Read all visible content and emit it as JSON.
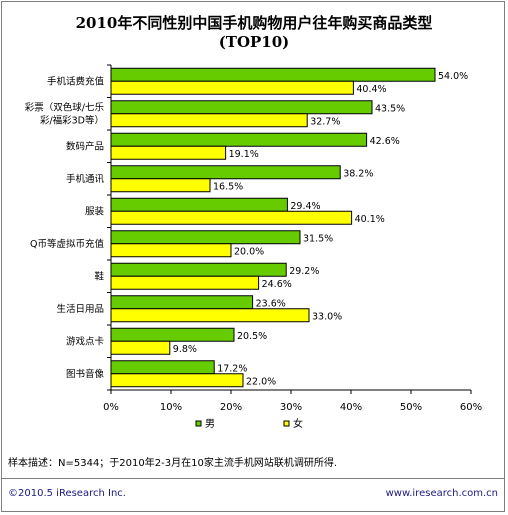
{
  "chart_data": {
    "type": "bar",
    "orientation": "horizontal",
    "title": "2010年不同性别中国手机购物用户往年购买商品类型",
    "subtitle": "(TOP10)",
    "categories": [
      [
        "手机话费充值"
      ],
      [
        "彩票（双色球/七乐",
        "彩/福彩3D等）"
      ],
      [
        "数码产品"
      ],
      [
        "手机通讯"
      ],
      [
        "服装"
      ],
      [
        "Q币等虚拟币充值"
      ],
      [
        "鞋"
      ],
      [
        "生活日用品"
      ],
      [
        "游戏点卡"
      ],
      [
        "图书音像"
      ]
    ],
    "series": [
      {
        "name": "男",
        "color": "#66cc00",
        "values": [
          54.0,
          43.5,
          42.6,
          38.2,
          29.4,
          31.5,
          29.2,
          23.6,
          20.5,
          17.2
        ]
      },
      {
        "name": "女",
        "color": "#ffff00",
        "values": [
          40.4,
          32.7,
          19.1,
          16.5,
          40.1,
          20.0,
          24.6,
          33.0,
          9.8,
          22.0
        ]
      }
    ],
    "xlim": [
      0,
      60
    ],
    "xticks": [
      "0%",
      "10%",
      "20%",
      "30%",
      "40%",
      "50%",
      "60%"
    ],
    "value_suffix": "%",
    "legend_position": "bottom"
  },
  "note": "样本描述：N=5344；于2010年2-3月在10家主流手机网站联机调研所得.",
  "footer": {
    "copyright": "©2010.5 iResearch Inc.",
    "website": "www.iresearch.com.cn"
  }
}
